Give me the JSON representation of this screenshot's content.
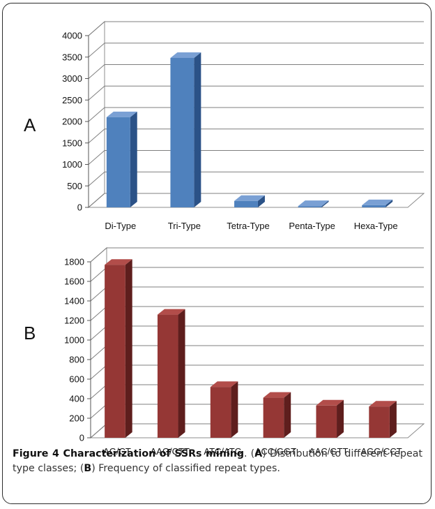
{
  "figure": {
    "panel_a_label": "A",
    "panel_b_label": "B",
    "caption_title": "Figure 4 Characterization of SSRs mining",
    "caption_a_label": "A",
    "caption_a_text": "Distribution to different repeat type classes;",
    "caption_b_label": "B",
    "caption_b_text": "Frequency of classified repeat types."
  },
  "chart_data": [
    {
      "type": "bar",
      "panel": "A",
      "categories": [
        "Di-Type",
        "Tri-Type",
        "Tetra-Type",
        "Penta-Type",
        "Hexa-Type"
      ],
      "values": [
        2100,
        3480,
        150,
        30,
        50
      ],
      "ylim": [
        0,
        4000
      ],
      "yticks": [
        0,
        500,
        1000,
        1500,
        2000,
        2500,
        3000,
        3500,
        4000
      ],
      "grid": true,
      "style": "3d",
      "colors": {
        "front": "#4f81bd",
        "side": "#2b5287",
        "top": "#7aa0d4"
      }
    },
    {
      "type": "bar",
      "panel": "B",
      "categories": [
        "AG/CT",
        "AAG/CTT",
        "ATC/ATG",
        "ACC/GGT",
        "AAC/GTT",
        "AGG/CCT"
      ],
      "values": [
        1770,
        1260,
        520,
        410,
        330,
        320
      ],
      "ylim": [
        0,
        1800
      ],
      "yticks": [
        0,
        200,
        400,
        600,
        800,
        1000,
        1200,
        1400,
        1600,
        1800
      ],
      "grid": true,
      "style": "3d",
      "colors": {
        "front": "#953735",
        "side": "#5e1e1d",
        "top": "#b24d4a"
      }
    }
  ]
}
